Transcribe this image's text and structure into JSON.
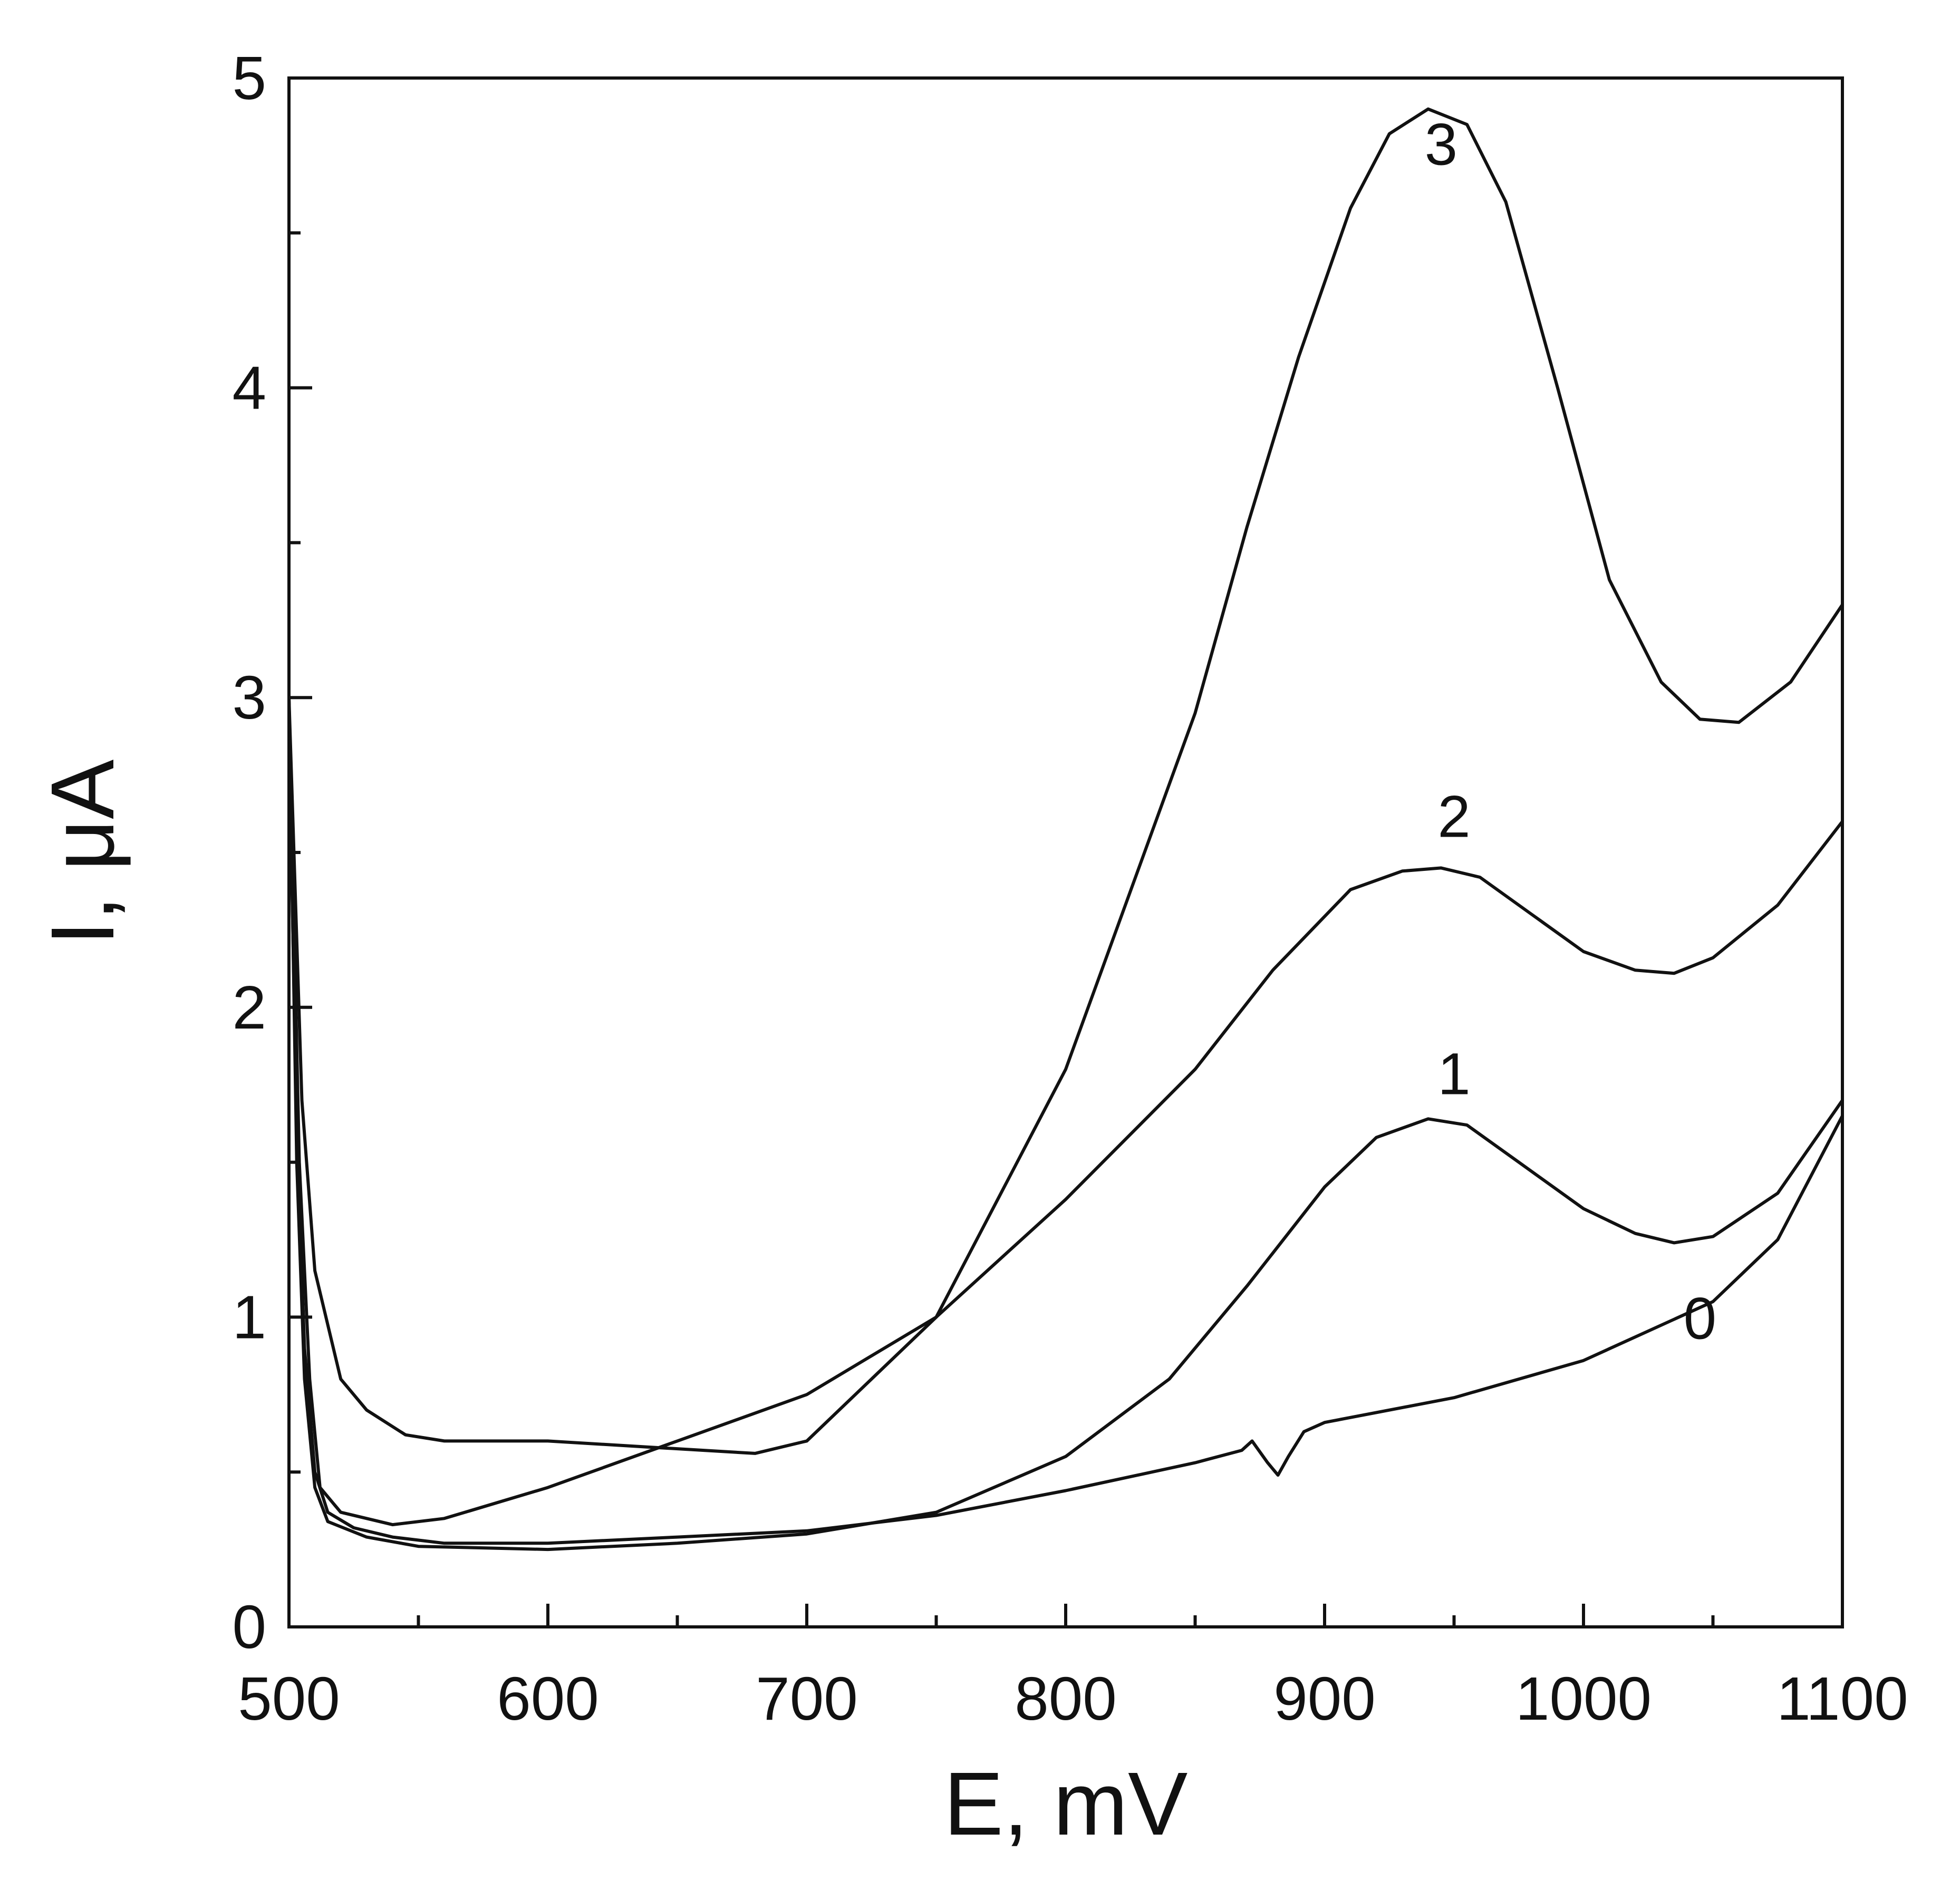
{
  "chart_data": {
    "type": "line",
    "xlabel": "E, mV",
    "ylabel": "I, μA",
    "xlim": [
      500,
      1100
    ],
    "ylim": [
      0,
      5
    ],
    "x_major_ticks": [
      500,
      600,
      700,
      800,
      900,
      1000,
      1100
    ],
    "x_tick_labels": [
      "500",
      "600",
      "700",
      "800",
      "900",
      "1000",
      "1100"
    ],
    "y_major_ticks": [
      0,
      1,
      2,
      3,
      4,
      5
    ],
    "y_tick_labels": [
      "0",
      "1",
      "2",
      "3",
      "4",
      "5"
    ],
    "x_minor_step": 50,
    "y_minor_step": 0.5,
    "grid": false,
    "series": [
      {
        "name": "0",
        "label_at": [
          1045,
          0.93
        ],
        "points": [
          [
            500,
            2.9
          ],
          [
            503,
            1.6
          ],
          [
            506,
            0.9
          ],
          [
            510,
            0.5
          ],
          [
            515,
            0.37
          ],
          [
            525,
            0.32
          ],
          [
            540,
            0.29
          ],
          [
            560,
            0.27
          ],
          [
            600,
            0.27
          ],
          [
            650,
            0.29
          ],
          [
            700,
            0.31
          ],
          [
            750,
            0.36
          ],
          [
            800,
            0.44
          ],
          [
            850,
            0.53
          ],
          [
            868,
            0.57
          ],
          [
            872,
            0.6
          ],
          [
            878,
            0.53
          ],
          [
            882,
            0.49
          ],
          [
            886,
            0.55
          ],
          [
            892,
            0.63
          ],
          [
            900,
            0.66
          ],
          [
            950,
            0.74
          ],
          [
            1000,
            0.86
          ],
          [
            1050,
            1.05
          ],
          [
            1075,
            1.25
          ],
          [
            1100,
            1.65
          ]
        ]
      },
      {
        "name": "1",
        "label_at": [
          950,
          1.72
        ],
        "points": [
          [
            500,
            3.0
          ],
          [
            503,
            1.5
          ],
          [
            506,
            0.8
          ],
          [
            510,
            0.45
          ],
          [
            515,
            0.34
          ],
          [
            530,
            0.29
          ],
          [
            550,
            0.26
          ],
          [
            600,
            0.25
          ],
          [
            650,
            0.27
          ],
          [
            700,
            0.3
          ],
          [
            750,
            0.37
          ],
          [
            800,
            0.55
          ],
          [
            840,
            0.8
          ],
          [
            870,
            1.1
          ],
          [
            900,
            1.42
          ],
          [
            920,
            1.58
          ],
          [
            940,
            1.64
          ],
          [
            955,
            1.62
          ],
          [
            975,
            1.5
          ],
          [
            1000,
            1.35
          ],
          [
            1020,
            1.27
          ],
          [
            1035,
            1.24
          ],
          [
            1050,
            1.26
          ],
          [
            1075,
            1.4
          ],
          [
            1100,
            1.7
          ]
        ]
      },
      {
        "name": "2",
        "label_at": [
          950,
          2.55
        ],
        "points": [
          [
            500,
            3.0
          ],
          [
            504,
            1.5
          ],
          [
            508,
            0.8
          ],
          [
            512,
            0.45
          ],
          [
            520,
            0.37
          ],
          [
            540,
            0.33
          ],
          [
            560,
            0.35
          ],
          [
            600,
            0.45
          ],
          [
            650,
            0.6
          ],
          [
            700,
            0.75
          ],
          [
            750,
            1.0
          ],
          [
            800,
            1.38
          ],
          [
            850,
            1.8
          ],
          [
            880,
            2.12
          ],
          [
            910,
            2.38
          ],
          [
            930,
            2.44
          ],
          [
            945,
            2.45
          ],
          [
            960,
            2.42
          ],
          [
            980,
            2.3
          ],
          [
            1000,
            2.18
          ],
          [
            1020,
            2.12
          ],
          [
            1035,
            2.11
          ],
          [
            1050,
            2.16
          ],
          [
            1075,
            2.33
          ],
          [
            1100,
            2.6
          ]
        ]
      },
      {
        "name": "3",
        "label_at": [
          945,
          4.72
        ],
        "points": [
          [
            500,
            3.0
          ],
          [
            505,
            1.7
          ],
          [
            510,
            1.15
          ],
          [
            520,
            0.8
          ],
          [
            530,
            0.7
          ],
          [
            545,
            0.62
          ],
          [
            560,
            0.6
          ],
          [
            600,
            0.6
          ],
          [
            640,
            0.58
          ],
          [
            680,
            0.56
          ],
          [
            700,
            0.6
          ],
          [
            750,
            1.0
          ],
          [
            800,
            1.8
          ],
          [
            850,
            2.95
          ],
          [
            870,
            3.55
          ],
          [
            890,
            4.1
          ],
          [
            910,
            4.58
          ],
          [
            925,
            4.82
          ],
          [
            940,
            4.9
          ],
          [
            955,
            4.85
          ],
          [
            970,
            4.6
          ],
          [
            990,
            4.0
          ],
          [
            1010,
            3.38
          ],
          [
            1030,
            3.05
          ],
          [
            1045,
            2.93
          ],
          [
            1060,
            2.92
          ],
          [
            1080,
            3.05
          ],
          [
            1100,
            3.3
          ]
        ]
      }
    ]
  }
}
